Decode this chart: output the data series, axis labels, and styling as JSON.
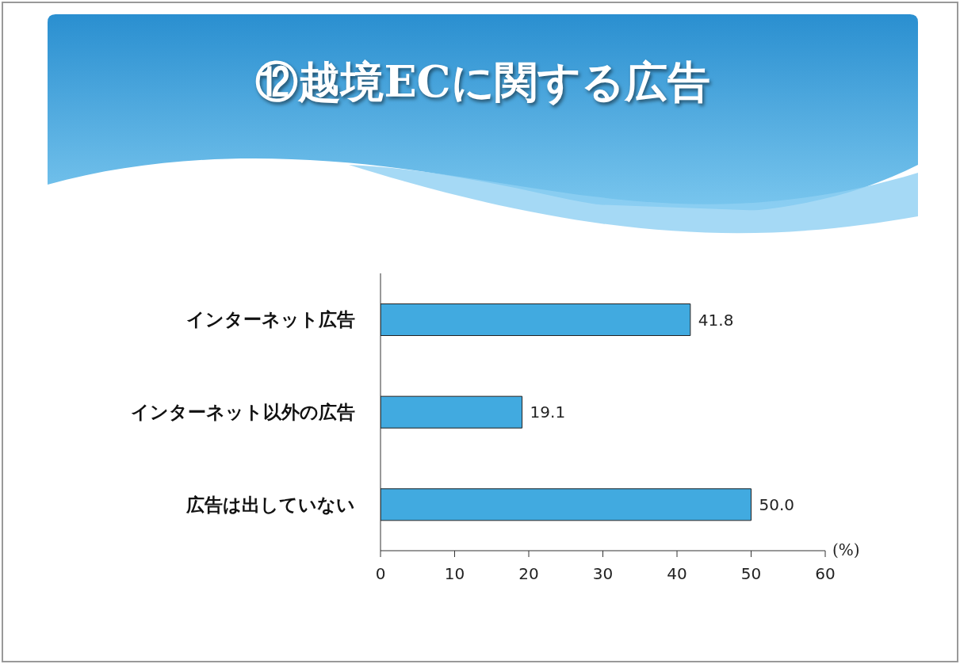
{
  "chart_data": {
    "type": "bar",
    "orientation": "horizontal",
    "title": "⑫越境ECに関する広告",
    "xlabel": "(%)",
    "categories": [
      "インターネット広告",
      "インターネット以外の広告",
      "広告は出していない"
    ],
    "values": [
      41.8,
      19.1,
      50.0
    ],
    "value_labels": [
      "41.8",
      "19.1",
      "50.0"
    ],
    "color": "#41aae0",
    "xlim": [
      0,
      60
    ],
    "xticks": [
      0,
      10,
      20,
      30,
      40,
      50,
      60
    ]
  }
}
